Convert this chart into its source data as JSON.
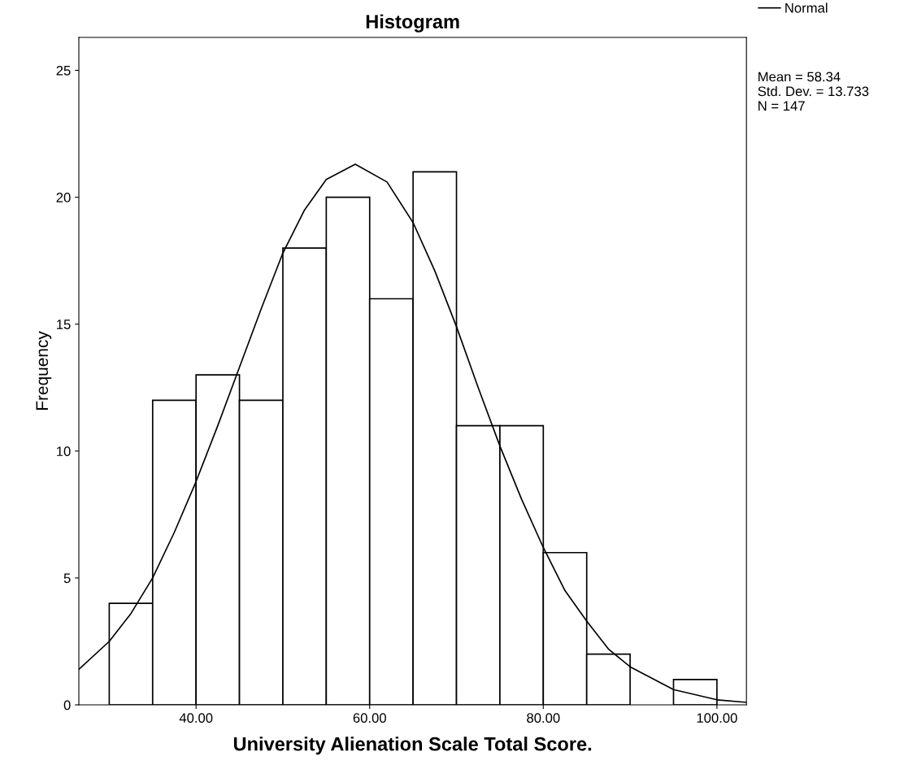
{
  "chart_data": {
    "type": "histogram",
    "title": "Histogram",
    "xlabel": "University Alienation Scale Total Score.",
    "ylabel": "Frequency",
    "series": [
      {
        "bins": [
          30,
          35,
          40,
          45,
          50,
          55,
          60,
          65,
          70,
          75,
          80,
          85,
          90,
          95,
          100
        ],
        "values": [
          4,
          12,
          13,
          12,
          18,
          20,
          16,
          21,
          11,
          11,
          6,
          2,
          0,
          1
        ],
        "color": "#ffffff"
      },
      {
        "type": "line",
        "name": "Normal",
        "color": "#000000",
        "x": [
          26.5,
          30,
          32.5,
          35,
          37.5,
          40,
          42.5,
          45,
          47.5,
          50,
          52.5,
          55,
          58.34,
          62,
          65,
          67.5,
          70,
          72.5,
          75,
          77.5,
          80,
          82.5,
          85,
          87.5,
          90,
          95,
          100,
          103.4
        ],
        "values": [
          1.4,
          2.5,
          3.6,
          5.0,
          6.8,
          8.8,
          11.0,
          13.3,
          15.6,
          17.8,
          19.5,
          20.7,
          21.3,
          20.6,
          19.0,
          17.1,
          14.9,
          12.5,
          10.2,
          8.1,
          6.2,
          4.5,
          3.3,
          2.2,
          1.5,
          0.6,
          0.2,
          0.1
        ]
      }
    ],
    "xlim": [
      26.5,
      103.4
    ],
    "ylim": [
      0,
      26.3
    ],
    "xticks": [
      {
        "value": 40,
        "label": "40.00"
      },
      {
        "value": 60,
        "label": "60.00"
      },
      {
        "value": 80,
        "label": "80.00"
      },
      {
        "value": 100,
        "label": "100.00"
      }
    ],
    "yticks": [
      0,
      5,
      10,
      15,
      20,
      25
    ],
    "grid": false,
    "legend": "top right",
    "annotations": [
      "Mean = 58.34\nStd. Dev. = 13.733\nN = 147"
    ]
  }
}
